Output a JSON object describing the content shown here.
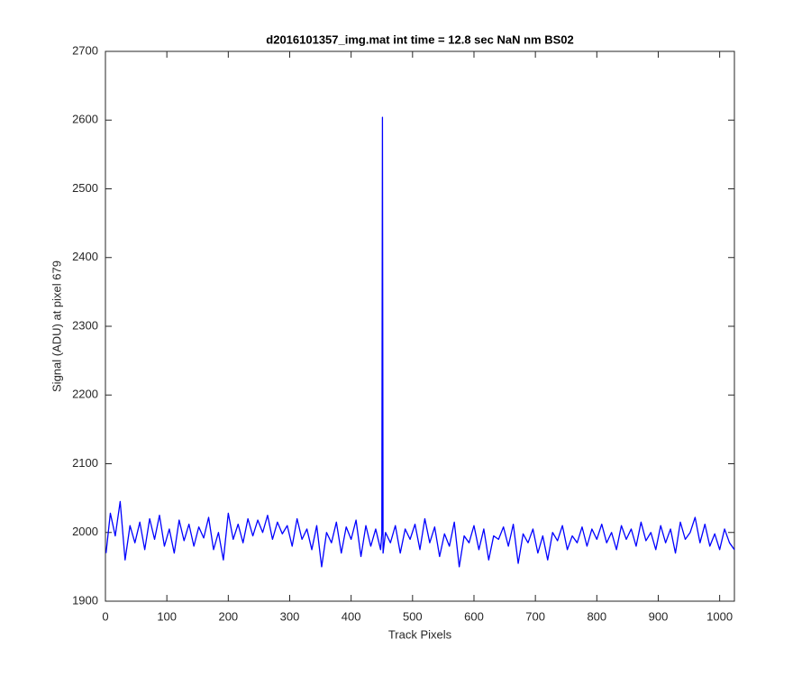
{
  "chart_data": {
    "type": "line",
    "title": "d2016101357_img.mat int time = 12.8 sec  NaN nm BS02",
    "x_label": "Track Pixels",
    "y_label": "Signal (ADU) at pixel 679",
    "color": "#0000ff",
    "x": [
      1,
      8,
      16,
      24,
      32,
      40,
      48,
      56,
      64,
      72,
      80,
      88,
      96,
      104,
      112,
      120,
      128,
      136,
      144,
      152,
      160,
      168,
      176,
      184,
      192,
      200,
      208,
      216,
      224,
      232,
      240,
      248,
      256,
      264,
      272,
      280,
      288,
      296,
      304,
      312,
      320,
      328,
      336,
      344,
      352,
      360,
      368,
      376,
      384,
      392,
      400,
      408,
      416,
      424,
      432,
      440,
      448,
      450,
      451,
      452,
      456,
      464,
      472,
      480,
      488,
      496,
      504,
      512,
      520,
      528,
      536,
      544,
      552,
      560,
      568,
      576,
      584,
      592,
      600,
      608,
      616,
      624,
      632,
      640,
      648,
      656,
      664,
      672,
      680,
      688,
      696,
      704,
      712,
      720,
      728,
      736,
      744,
      752,
      760,
      768,
      776,
      784,
      792,
      800,
      808,
      816,
      824,
      832,
      840,
      848,
      856,
      864,
      872,
      880,
      888,
      896,
      904,
      912,
      920,
      928,
      936,
      944,
      952,
      960,
      968,
      976,
      984,
      992,
      1000,
      1008,
      1016,
      1024
    ],
    "values": [
      1970,
      2028,
      1995,
      2045,
      1960,
      2010,
      1985,
      2015,
      1975,
      2020,
      1990,
      2025,
      1980,
      2005,
      1970,
      2018,
      1988,
      2012,
      1980,
      2008,
      1992,
      2022,
      1975,
      2000,
      1960,
      2028,
      1990,
      2012,
      1985,
      2020,
      1995,
      2018,
      2000,
      2025,
      1990,
      2015,
      1998,
      2010,
      1980,
      2020,
      1990,
      2005,
      1975,
      2010,
      1950,
      2000,
      1985,
      2015,
      1970,
      2008,
      1990,
      2018,
      1965,
      2010,
      1980,
      2005,
      1975,
      1998,
      2604,
      1970,
      2000,
      1985,
      2010,
      1970,
      2005,
      1990,
      2012,
      1975,
      2020,
      1985,
      2008,
      1965,
      1998,
      1980,
      2015,
      1950,
      1995,
      1985,
      2010,
      1975,
      2005,
      1960,
      1995,
      1990,
      2008,
      1980,
      2012,
      1955,
      1998,
      1985,
      2005,
      1970,
      1995,
      1960,
      2000,
      1988,
      2010,
      1975,
      1995,
      1985,
      2008,
      1980,
      2005,
      1990,
      2012,
      1985,
      2000,
      1975,
      2010,
      1990,
      2005,
      1980,
      2015,
      1988,
      2000,
      1975,
      2010,
      1985,
      2005,
      1970,
      2015,
      1990,
      2000,
      2022,
      1985,
      2012,
      1980,
      1998,
      1975,
      2005,
      1985,
      1975
    ],
    "xlim": [
      0,
      1024
    ],
    "xticks": [
      0,
      100,
      200,
      300,
      400,
      500,
      600,
      700,
      800,
      900,
      1000
    ],
    "ylim": [
      1900,
      2700
    ],
    "yticks": [
      1900,
      2000,
      2100,
      2200,
      2300,
      2400,
      2500,
      2600,
      2700
    ],
    "grid": false
  }
}
